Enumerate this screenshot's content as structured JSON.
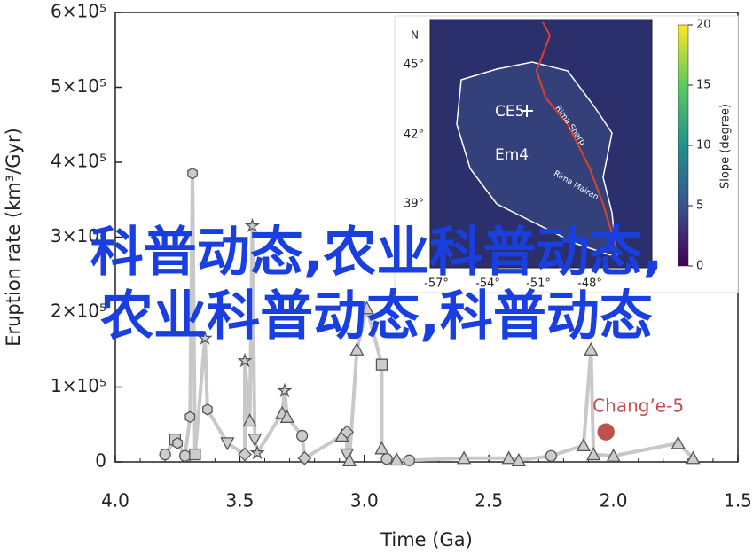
{
  "chart_data": {
    "type": "scatter",
    "x_label": "Time (Ga)",
    "y_label": "Eruption rate (km³/Gyr)",
    "xlim": [
      4.0,
      1.5
    ],
    "xticks": [
      {
        "value": 4,
        "label": "4.0"
      },
      3.5,
      {
        "value": 3,
        "label": "3.0"
      },
      2.5,
      {
        "value": 2,
        "label": "2.0"
      },
      1.5
    ],
    "ylim": [
      0,
      600000
    ],
    "yticks": [
      0,
      {
        "value": 100000,
        "label": "1×10⁵"
      },
      {
        "value": 200000,
        "label": "2×10⁵"
      },
      {
        "value": 300000,
        "label": "3×10⁵"
      },
      {
        "value": 400000,
        "label": "4×10⁵"
      },
      {
        "value": 500000,
        "label": "5×10⁵"
      },
      {
        "value": 600000,
        "label": "6×10⁵"
      }
    ],
    "line_color": "#c8c8c8",
    "series": [
      {
        "color": "#cccccc",
        "x": [
          3.8,
          3.76,
          3.75,
          3.72,
          3.7,
          3.69,
          3.68,
          3.64,
          3.63,
          3.55,
          3.48,
          3.48,
          3.46,
          3.45,
          3.44,
          3.43,
          3.33,
          3.32,
          3.31,
          3.25,
          3.24,
          3.09,
          3.07,
          3.07,
          3.06,
          3.03,
          2.99,
          2.93,
          2.93,
          2.91,
          2.87,
          2.82,
          2.6,
          2.42,
          2.38,
          2.25,
          2.12,
          2.09,
          2.08,
          2.0,
          1.74,
          1.68
        ],
        "values": [
          10000,
          30000,
          25000,
          8000,
          60000,
          385000,
          10000,
          165000,
          70000,
          25000,
          10000,
          135000,
          55000,
          315000,
          30000,
          12000,
          65000,
          95000,
          60000,
          35000,
          5000,
          35000,
          40000,
          10000,
          2000,
          150000,
          205000,
          130000,
          18000,
          4000,
          3000,
          2000,
          5000,
          5000,
          2000,
          8000,
          22000,
          150000,
          10000,
          8000,
          25000,
          5000
        ],
        "markers": [
          "circle",
          "square",
          "hexagon",
          "circle",
          "hexagon",
          "hexagon",
          "square",
          "star",
          "hexagon",
          "tri-down",
          "diamond",
          "star",
          "triangle",
          "star",
          "tri-down",
          "star",
          "triangle",
          "star",
          "triangle",
          "circle",
          "diamond",
          "triangle",
          "diamond",
          "tri-down",
          "triangle",
          "triangle",
          "triangle",
          "square",
          "triangle",
          "circle",
          "triangle",
          "circle",
          "triangle",
          "triangle",
          "triangle",
          "circle",
          "triangle",
          "triangle",
          "triangle",
          "triangle",
          "triangle",
          "triangle"
        ]
      },
      {
        "name": "Chang’e-5",
        "color": "#c0504d",
        "x": [
          2.03
        ],
        "values": [
          40000
        ],
        "markers": [
          "circle"
        ]
      }
    ]
  },
  "inset": {
    "north": "N",
    "lat_labels": [
      "45°",
      "42°",
      "39°"
    ],
    "lon_labels": [
      "-57°",
      "-54°",
      "-51°",
      "-48°"
    ],
    "site_labels": [
      "CE5",
      "Em4",
      "Rima Sharp",
      "Rima Mairan"
    ],
    "colorbar_label": "Slope (degree)",
    "colorbar_ticks": [
      0,
      5,
      10,
      15,
      20
    ]
  },
  "watermark": [
    "科普动态,农业科普动态,",
    "农业科普动态,科普动态"
  ]
}
